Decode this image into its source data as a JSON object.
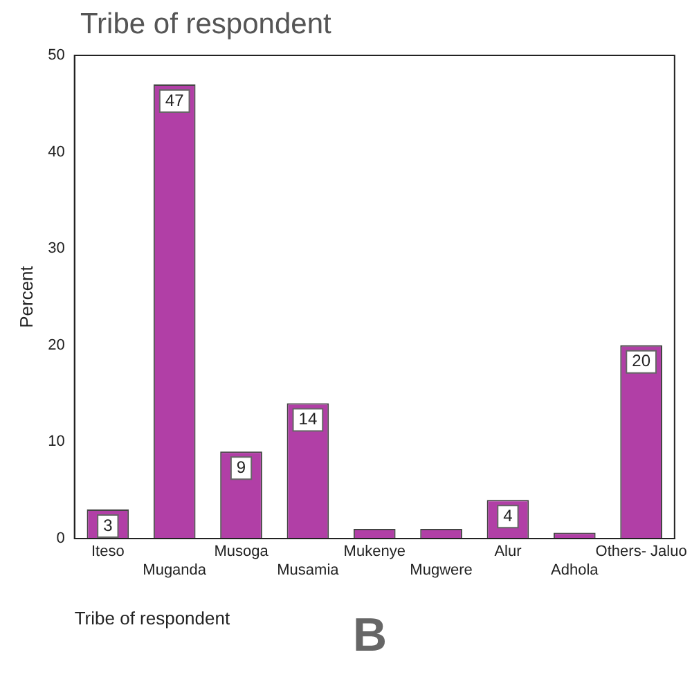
{
  "chart_data": {
    "type": "bar",
    "title": "Tribe of respondent",
    "xlabel": "Tribe of respondent",
    "ylabel": "Percent",
    "categories": [
      "Iteso",
      "Muganda",
      "Musoga",
      "Musamia",
      "Mukenye",
      "Mugwere",
      "Alur",
      "Adhola",
      "Others- Jaluo"
    ],
    "values": [
      3,
      47,
      9,
      14,
      1,
      1,
      4,
      0.6,
      20
    ],
    "value_labels": [
      "3",
      "47",
      "9",
      "14",
      null,
      null,
      "4",
      null,
      "20"
    ],
    "color": "#b13fa6",
    "ylim": [
      0,
      50
    ],
    "yticks": [
      0,
      10,
      20,
      30,
      40,
      50
    ],
    "grid": false,
    "legend": false,
    "annotations": [
      "B"
    ]
  }
}
